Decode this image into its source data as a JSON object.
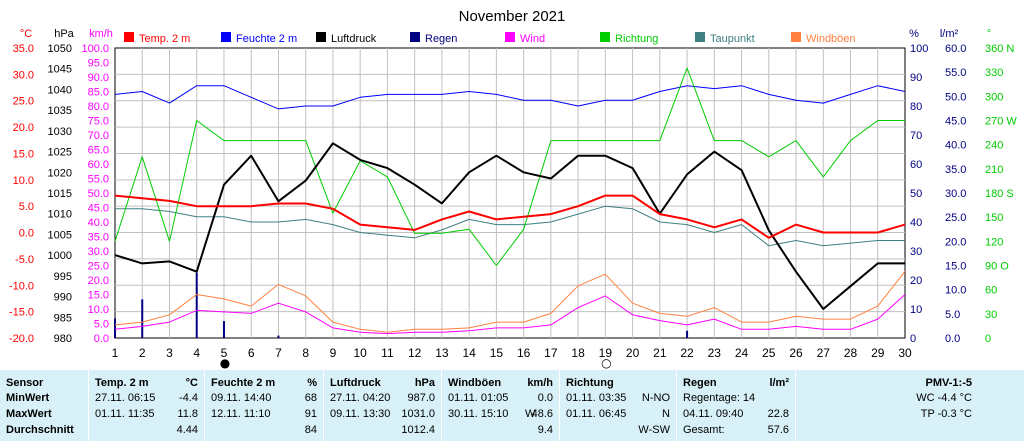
{
  "title": "November 2021",
  "colors": {
    "temp": "#ff0000",
    "humidity": "#0000ff",
    "pressure": "#000000",
    "rain": "#000080",
    "wind": "#ff00ff",
    "direction": "#00cc00",
    "dewpoint": "#408080",
    "gust": "#ff8040",
    "grid": "#c0c0c0",
    "summary_bg": "#d8f0f7"
  },
  "chart_data": {
    "type": "line",
    "title": "November 2021",
    "grid": true,
    "legend_position": "top",
    "x": [
      1,
      2,
      3,
      4,
      5,
      6,
      7,
      8,
      9,
      10,
      11,
      12,
      13,
      14,
      15,
      16,
      17,
      18,
      19,
      20,
      21,
      22,
      23,
      24,
      25,
      26,
      27,
      28,
      29,
      30
    ],
    "xlim": [
      1,
      30
    ],
    "axes": [
      {
        "unit": "°C",
        "min": -20,
        "max": 35,
        "step": 5,
        "ticks": [
          "-20.0",
          "-15.0",
          "-10.0",
          "-5.0",
          "0.0",
          "5.0",
          "10.0",
          "15.0",
          "20.0",
          "25.0",
          "30.0",
          "35.0"
        ]
      },
      {
        "unit": "hPa",
        "min": 980,
        "max": 1050,
        "step": 5,
        "ticks": [
          "980",
          "985",
          "990",
          "995",
          "1000",
          "1005",
          "1010",
          "1015",
          "1020",
          "1025",
          "1030",
          "1035",
          "1040",
          "1045",
          "1050"
        ]
      },
      {
        "unit": "km/h",
        "min": 0,
        "max": 100,
        "step": 5,
        "ticks": [
          "0.0",
          "5.0",
          "10.0",
          "15.0",
          "20.0",
          "25.0",
          "30.0",
          "35.0",
          "40.0",
          "45.0",
          "50.0",
          "55.0",
          "60.0",
          "65.0",
          "70.0",
          "75.0",
          "80.0",
          "85.0",
          "90.0",
          "95.0",
          "100.0"
        ]
      },
      {
        "unit": "%",
        "min": 0,
        "max": 100,
        "step": 10,
        "ticks": [
          "0",
          "10",
          "20",
          "30",
          "40",
          "50",
          "60",
          "70",
          "80",
          "90",
          "100"
        ]
      },
      {
        "unit": "l/m²",
        "min": 0,
        "max": 60,
        "step": 5,
        "ticks": [
          "0.0",
          "5.0",
          "10.0",
          "15.0",
          "20.0",
          "25.0",
          "30.0",
          "35.0",
          "40.0",
          "45.0",
          "50.0",
          "55.0",
          "60.0"
        ]
      },
      {
        "unit": "°",
        "min": 0,
        "max": 360,
        "step": 30,
        "ticks": [
          "0",
          "30",
          "60",
          "90 O",
          "120",
          "150",
          "180 S",
          "210",
          "240",
          "270 W",
          "300",
          "330",
          "360 N"
        ]
      }
    ],
    "series": [
      {
        "name": "Temp. 2 m",
        "axis": 0,
        "color": "#ff0000",
        "width": 2,
        "values": [
          7.0,
          6.5,
          6.0,
          5.0,
          5.0,
          5.0,
          5.5,
          5.5,
          4.5,
          1.5,
          1.0,
          0.5,
          2.5,
          4.0,
          2.5,
          3.0,
          3.5,
          5.0,
          7.0,
          7.0,
          3.5,
          2.5,
          1.0,
          2.5,
          -1.0,
          1.5,
          0.0,
          0.0,
          0.0,
          1.5
        ]
      },
      {
        "name": "Feuchte 2 m",
        "axis": 3,
        "color": "#0000ff",
        "width": 1,
        "values": [
          84,
          85,
          81,
          87,
          87,
          83,
          79,
          80,
          80,
          83,
          84,
          84,
          84,
          85,
          84,
          82,
          82,
          80,
          82,
          82,
          85,
          87,
          86,
          87,
          84,
          82,
          81,
          84,
          87,
          85
        ]
      },
      {
        "name": "Luftdruck",
        "axis": 1,
        "color": "#000000",
        "width": 2,
        "values": [
          1000.0,
          998.0,
          998.5,
          996.0,
          1017.0,
          1024.0,
          1013.0,
          1018.0,
          1027.0,
          1023.0,
          1021.0,
          1017.0,
          1012.5,
          1020.0,
          1024.0,
          1020.0,
          1018.5,
          1024.0,
          1024.0,
          1021.0,
          1010.0,
          1019.5,
          1025.0,
          1020.5,
          1006.0,
          996.0,
          987.0,
          992.5,
          998.0,
          998.0
        ]
      },
      {
        "name": "Regen",
        "axis": 4,
        "color": "#000080",
        "type": "bar",
        "values": [
          4.0,
          8.0,
          0.0,
          13.5,
          3.5,
          0.0,
          0.5,
          0.0,
          0.0,
          0.0,
          0.0,
          0.0,
          0.0,
          0.0,
          0.0,
          0.0,
          0.0,
          0.0,
          0.0,
          0.0,
          0.0,
          1.5,
          0.0,
          0.0,
          0.0,
          0.0,
          0.0,
          0.0,
          0.0,
          0.0
        ]
      },
      {
        "name": "Wind",
        "axis": 2,
        "color": "#ff00ff",
        "width": 1,
        "values": [
          3.0,
          4.0,
          5.5,
          9.5,
          9.0,
          8.5,
          12.0,
          9.0,
          3.5,
          2.0,
          1.5,
          2.0,
          2.0,
          2.5,
          3.5,
          3.5,
          4.5,
          10.5,
          14.5,
          8.0,
          6.0,
          4.5,
          6.5,
          3.0,
          3.0,
          4.0,
          3.0,
          3.0,
          6.5,
          15.0
        ]
      },
      {
        "name": "Richtung",
        "axis": 5,
        "color": "#00cc00",
        "width": 1,
        "values": [
          120,
          225,
          120,
          270,
          245,
          245,
          245,
          245,
          155,
          220,
          200,
          130,
          130,
          135,
          90,
          135,
          245,
          245,
          245,
          245,
          245,
          335,
          245,
          245,
          225,
          245,
          200,
          245,
          270,
          270
        ]
      },
      {
        "name": "Taupunkt",
        "axis": 0,
        "color": "#408080",
        "width": 1,
        "values": [
          4.5,
          4.5,
          4.0,
          3.0,
          3.0,
          2.0,
          2.0,
          2.5,
          1.5,
          0.0,
          -0.5,
          -1.0,
          0.5,
          2.5,
          1.5,
          1.5,
          2.0,
          3.5,
          5.0,
          4.5,
          2.0,
          1.5,
          0.0,
          1.5,
          -2.5,
          -1.5,
          -2.5,
          -2.0,
          -1.5,
          -1.5
        ]
      },
      {
        "name": "Windböen",
        "axis": 2,
        "color": "#ff8040",
        "width": 1,
        "values": [
          4.5,
          5.5,
          8.0,
          15.0,
          13.5,
          11.0,
          18.5,
          14.5,
          5.5,
          3.0,
          2.0,
          3.0,
          3.0,
          3.5,
          5.5,
          5.5,
          8.5,
          18.0,
          22.0,
          12.0,
          8.5,
          7.5,
          10.5,
          5.5,
          5.5,
          7.5,
          6.5,
          6.5,
          11.0,
          23.0
        ]
      }
    ],
    "markers": [
      {
        "day": 5,
        "symbol": "●",
        "label": "new-moon"
      },
      {
        "day": 19,
        "symbol": "○",
        "label": "full-moon"
      }
    ]
  },
  "summary": {
    "sensor": {
      "header": "Sensor",
      "rows": [
        "MinWert",
        "MaxWert",
        "Durchschnitt"
      ]
    },
    "temp": {
      "label": "Temp. 2 m",
      "unit": "°C",
      "min_time": "27.11.  06:15",
      "min_val": "-4.4",
      "max_time": "01.11.  11:35",
      "max_val": "11.8",
      "avg": "4.44"
    },
    "humidity": {
      "label": "Feuchte  2 m",
      "unit": "%",
      "min_time": "09.11.  14:40",
      "min_val": "68",
      "max_time": "12.11.  11:10",
      "max_val": "91",
      "avg": "84"
    },
    "pressure": {
      "label": "Luftdruck",
      "unit": "hPa",
      "min_time": "27.11.  04:20",
      "min_val": "987.0",
      "max_time": "09.11.  13:30",
      "max_val": "1031.0",
      "avg": "1012.4"
    },
    "gusts": {
      "label": "Windböen",
      "unit": "km/h",
      "min_time": "01.11.  01:05",
      "min_val": "0.0",
      "max_time": "30.11.  15:10",
      "max_dir": "W",
      "max_val": "48.6",
      "avg": "9.4"
    },
    "direction": {
      "label": "Richtung",
      "min_time": "01.11.  03:35",
      "min_val": "N-NO",
      "max_time": "01.11.  06:45",
      "max_val": "N",
      "avg": "W-SW"
    },
    "rain": {
      "label": "Regen",
      "unit": "l/m²",
      "days_label": "Regentage: 14",
      "max_time": "04.11.  09:40",
      "max_val": "22.8",
      "total_label": "Gesamt:",
      "total_val": "57.6"
    },
    "pmv": {
      "label": "PMV-1:-5",
      "wc": "WC -4.4 °C",
      "tp": "TP -0.3 °C"
    }
  }
}
